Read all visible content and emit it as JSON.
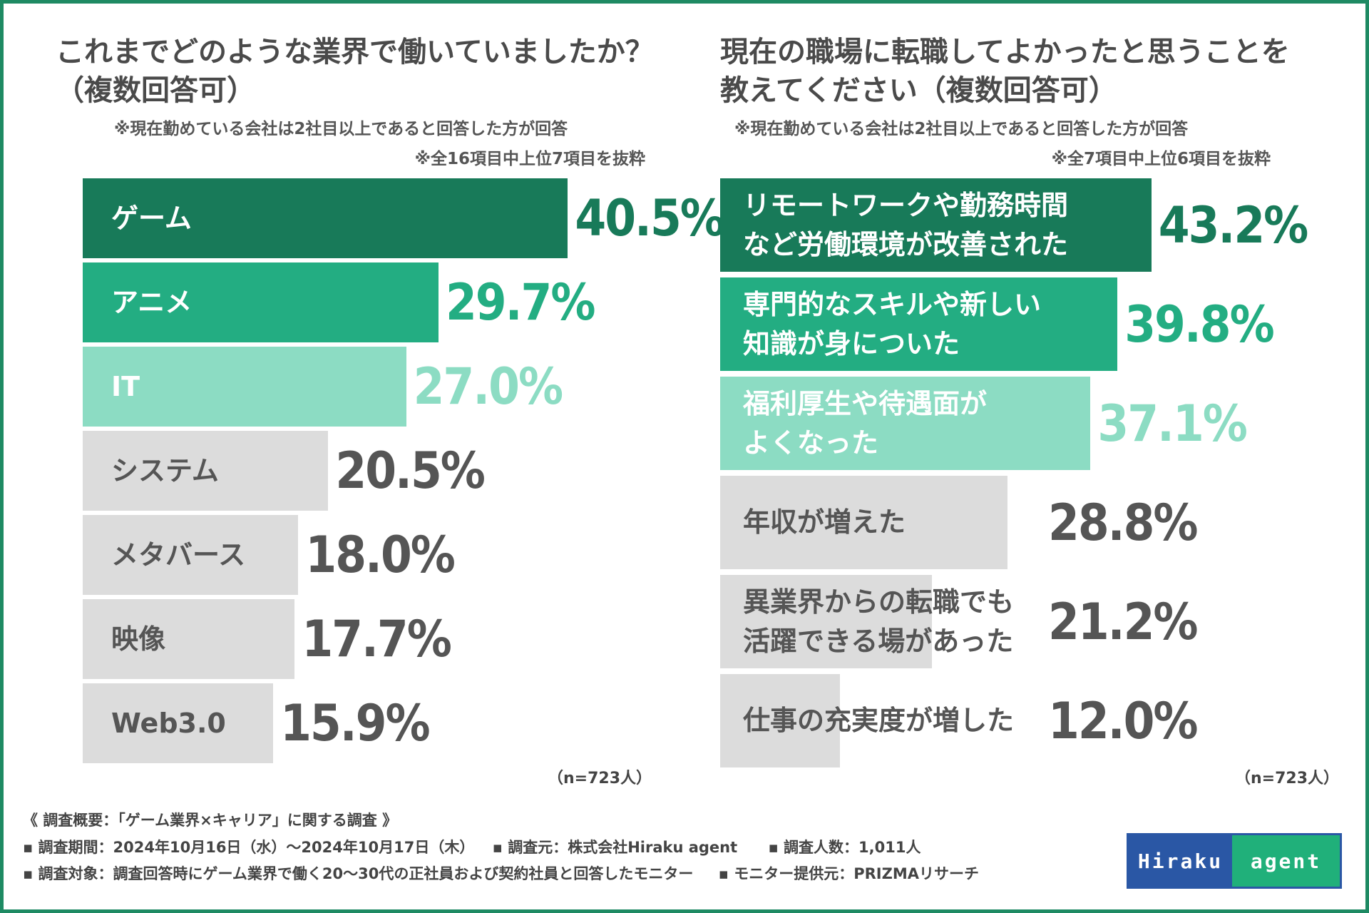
{
  "colors": {
    "rank1": "#187a59",
    "rank2": "#23ad82",
    "rank3": "#8cdcc3",
    "rest": "#dcdcdc",
    "rest_text": "#555555",
    "white": "#ffffff"
  },
  "chart_data": [
    {
      "type": "bar",
      "orientation": "horizontal",
      "title": "これまでどのような業界で働いていましたか？（複数回答可）",
      "note1": "※現在勤めている会社は2社目以上であると回答した方が回答",
      "note2": "※全16項目中上位7項目を抜粋",
      "sample": "（n=723人）",
      "categories": [
        "ゲーム",
        "アニメ",
        "IT",
        "システム",
        "メタバース",
        "映像",
        "Web3.0"
      ],
      "values": [
        40.5,
        29.7,
        27.0,
        20.5,
        18.0,
        17.7,
        15.9
      ],
      "value_labels": [
        "40.5%",
        "29.7%",
        "27.0%",
        "20.5%",
        "18.0%",
        "17.7%",
        "15.9%"
      ],
      "unit": "%"
    },
    {
      "type": "bar",
      "orientation": "horizontal",
      "title": "現在の職場に転職してよかったと思うことを教えてください（複数回答可）",
      "note1": "※現在勤めている会社は2社目以上であると回答した方が回答",
      "note2": "※全7項目中上位6項目を抜粋",
      "sample": "（n=723人）",
      "categories": [
        "リモートワークや勤務時間など労働環境が改善された",
        "専門的なスキルや新しい知識が身についた",
        "福利厚生や待遇面がよくなった",
        "年収が増えた",
        "異業界からの転職でも活躍できる場があった",
        "仕事の充実度が増した"
      ],
      "category_lines": [
        [
          "リモートワークや勤務時間",
          "など労働環境が改善された"
        ],
        [
          "専門的なスキルや新しい",
          "知識が身についた"
        ],
        [
          "福利厚生や待遇面が",
          "よくなった"
        ],
        [
          "年収が増えた"
        ],
        [
          "異業界からの転職でも",
          "活躍できる場があった"
        ],
        [
          "仕事の充実度が増した"
        ]
      ],
      "values": [
        43.2,
        39.8,
        37.1,
        28.8,
        21.2,
        12.0
      ],
      "value_labels": [
        "43.2%",
        "39.8%",
        "37.1%",
        "28.8%",
        "21.2%",
        "12.0%"
      ],
      "unit": "%"
    }
  ],
  "footer": {
    "heading": "《 調査概要：「ゲーム業界×キャリア」に関する調査 》",
    "period": "▪ 調査期間：2024年10月16日（水）～2024年10月17日（木）",
    "source": "▪ 調査元：株式会社Hiraku agent",
    "count": "▪ 調査人数：1,011人",
    "target": "▪ 調査対象：調査回答時にゲーム業界で働く20～30代の正社員および契約社員と回答したモニター",
    "provider": "▪ モニター提供元：PRIZMAリサーチ"
  },
  "logo": {
    "part1": "Hiraku",
    "part2": "agent"
  }
}
